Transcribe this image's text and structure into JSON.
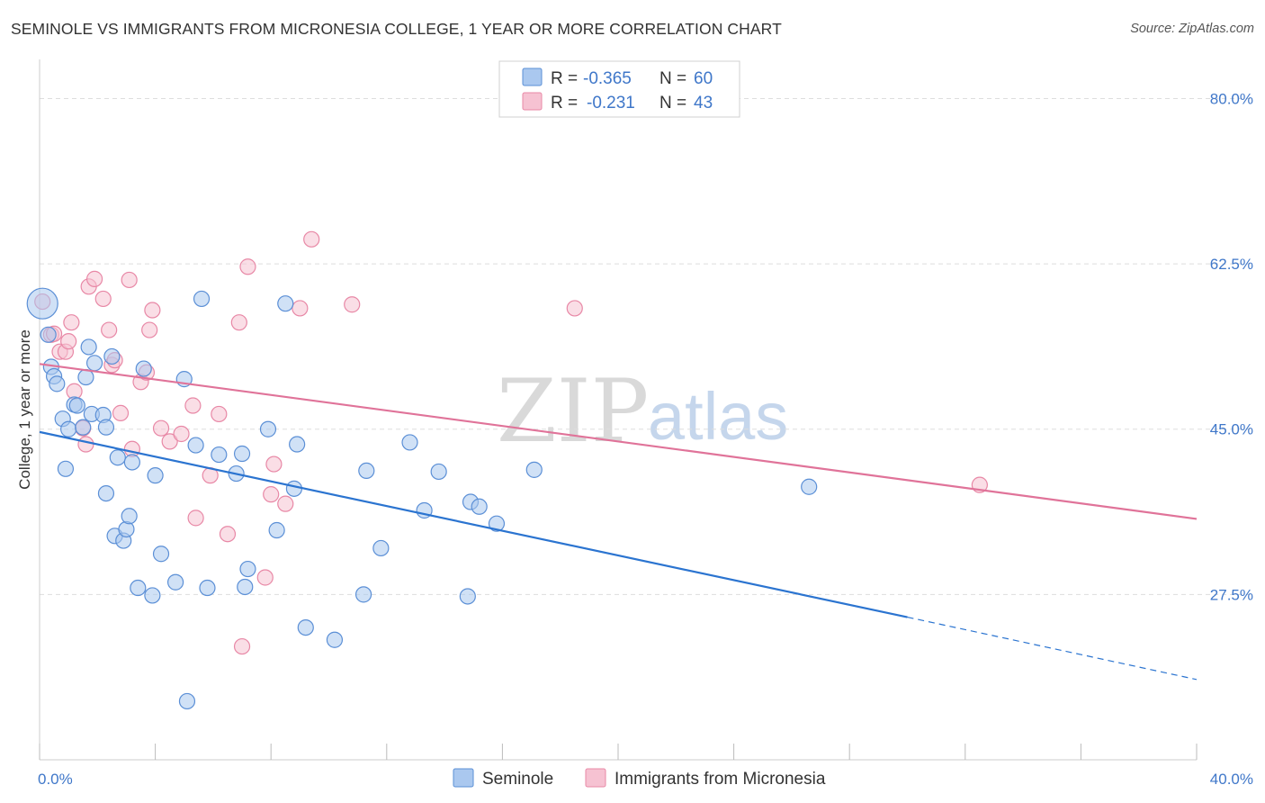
{
  "title": "SEMINOLE VS IMMIGRANTS FROM MICRONESIA COLLEGE, 1 YEAR OR MORE CORRELATION CHART",
  "source": "Source: ZipAtlas.com",
  "watermark": {
    "zip": "ZIP",
    "atlas": "atlas"
  },
  "legend_top": {
    "rows": [
      {
        "r_label": "R =",
        "r_value": "-0.365",
        "n_label": "N =",
        "n_value": "60"
      },
      {
        "r_label": "R =",
        "r_value": "-0.231",
        "n_label": "N =",
        "n_value": "43"
      }
    ]
  },
  "colors": {
    "seminole_fill": "#aac8ef",
    "seminole_stroke": "#5b8fd6",
    "seminole_line": "#2b74d0",
    "micronesia_fill": "#f6c2d2",
    "micronesia_stroke": "#e888a6",
    "micronesia_line": "#e07399",
    "tick_text": "#3f77c9",
    "grid": "#dddddd"
  },
  "chart_data": {
    "type": "scatter",
    "title": "SEMINOLE VS IMMIGRANTS FROM MICRONESIA COLLEGE, 1 YEAR OR MORE CORRELATION CHART",
    "xlabel": "",
    "ylabel": "College, 1 year or more",
    "xlim": [
      0,
      40
    ],
    "ylim": [
      10,
      83
    ],
    "x_tick_labels": [
      "0.0%",
      "40.0%"
    ],
    "y_ticks": [
      27.5,
      45.0,
      62.5,
      80.0
    ],
    "y_tick_labels": [
      "27.5%",
      "45.0%",
      "62.5%",
      "80.0%"
    ],
    "grid": true,
    "legend_position": "top-center",
    "series": [
      {
        "name": "Seminole",
        "r": -0.365,
        "n": 60,
        "trend": {
          "x0": 0,
          "y0": 44.7,
          "x1": 30,
          "y1": 25.1,
          "dashed_to_x": 40,
          "dashed_to_y": 18.5
        },
        "points": [
          [
            0.1,
            58.3,
            "big"
          ],
          [
            0.3,
            55.0
          ],
          [
            0.4,
            51.6
          ],
          [
            0.5,
            50.6
          ],
          [
            0.6,
            49.8
          ],
          [
            0.8,
            46.1
          ],
          [
            0.9,
            40.8
          ],
          [
            1.0,
            45.0
          ],
          [
            1.2,
            47.6
          ],
          [
            1.3,
            47.5
          ],
          [
            1.5,
            45.2
          ],
          [
            1.6,
            50.5
          ],
          [
            1.7,
            53.7
          ],
          [
            1.8,
            46.6
          ],
          [
            1.9,
            52.0
          ],
          [
            2.2,
            46.5
          ],
          [
            2.3,
            45.2
          ],
          [
            2.3,
            38.2
          ],
          [
            2.5,
            52.7
          ],
          [
            2.6,
            33.7
          ],
          [
            2.7,
            42.0
          ],
          [
            2.9,
            33.2
          ],
          [
            3.0,
            34.4
          ],
          [
            3.1,
            35.8
          ],
          [
            3.2,
            41.5
          ],
          [
            3.4,
            28.2
          ],
          [
            3.6,
            51.4
          ],
          [
            3.9,
            27.4
          ],
          [
            4.0,
            40.1
          ],
          [
            4.2,
            31.8
          ],
          [
            4.7,
            28.8
          ],
          [
            5.0,
            50.3
          ],
          [
            5.1,
            16.2
          ],
          [
            5.4,
            43.3
          ],
          [
            5.6,
            58.8
          ],
          [
            5.8,
            28.2
          ],
          [
            6.2,
            42.3
          ],
          [
            6.8,
            40.3
          ],
          [
            7.0,
            42.4
          ],
          [
            7.1,
            28.3
          ],
          [
            7.2,
            30.2
          ],
          [
            7.9,
            45.0
          ],
          [
            8.2,
            34.3
          ],
          [
            8.5,
            58.3
          ],
          [
            8.8,
            38.7
          ],
          [
            8.9,
            43.4
          ],
          [
            9.2,
            24.0
          ],
          [
            10.2,
            22.7
          ],
          [
            11.2,
            27.5
          ],
          [
            11.3,
            40.6
          ],
          [
            11.8,
            32.4
          ],
          [
            12.8,
            43.6
          ],
          [
            13.3,
            36.4
          ],
          [
            13.8,
            40.5
          ],
          [
            14.8,
            27.3
          ],
          [
            14.9,
            37.3
          ],
          [
            15.2,
            36.8
          ],
          [
            15.8,
            35.0
          ],
          [
            17.1,
            40.7
          ],
          [
            26.6,
            38.9
          ]
        ]
      },
      {
        "name": "Immigrants from Micronesia",
        "r": -0.231,
        "n": 43,
        "trend": {
          "x0": 0,
          "y0": 51.9,
          "x1": 40,
          "y1": 35.5
        },
        "points": [
          [
            0.1,
            58.5
          ],
          [
            0.4,
            55.0
          ],
          [
            0.5,
            55.1
          ],
          [
            0.7,
            53.2
          ],
          [
            0.9,
            53.2
          ],
          [
            1.0,
            54.3
          ],
          [
            1.1,
            56.3
          ],
          [
            1.2,
            49.0
          ],
          [
            1.5,
            45.1
          ],
          [
            1.6,
            43.4
          ],
          [
            1.7,
            60.1
          ],
          [
            1.9,
            60.9
          ],
          [
            2.2,
            58.8
          ],
          [
            2.4,
            55.5
          ],
          [
            2.5,
            51.8
          ],
          [
            2.6,
            52.3
          ],
          [
            2.8,
            46.7
          ],
          [
            3.1,
            60.8
          ],
          [
            3.2,
            42.9
          ],
          [
            3.5,
            50.0
          ],
          [
            3.7,
            51.0
          ],
          [
            3.8,
            55.5
          ],
          [
            3.9,
            57.6
          ],
          [
            4.2,
            45.1
          ],
          [
            4.5,
            43.7
          ],
          [
            4.9,
            44.5
          ],
          [
            5.3,
            47.5
          ],
          [
            5.4,
            35.6
          ],
          [
            5.9,
            40.1
          ],
          [
            6.2,
            46.6
          ],
          [
            6.5,
            33.9
          ],
          [
            6.9,
            56.3
          ],
          [
            7.0,
            22.0
          ],
          [
            7.2,
            62.2
          ],
          [
            7.8,
            29.3
          ],
          [
            8.0,
            38.1
          ],
          [
            8.1,
            41.3
          ],
          [
            8.5,
            37.1
          ],
          [
            9.0,
            57.8
          ],
          [
            9.4,
            65.1
          ],
          [
            10.8,
            58.2
          ],
          [
            18.5,
            57.8
          ],
          [
            32.5,
            39.1
          ]
        ]
      }
    ]
  }
}
